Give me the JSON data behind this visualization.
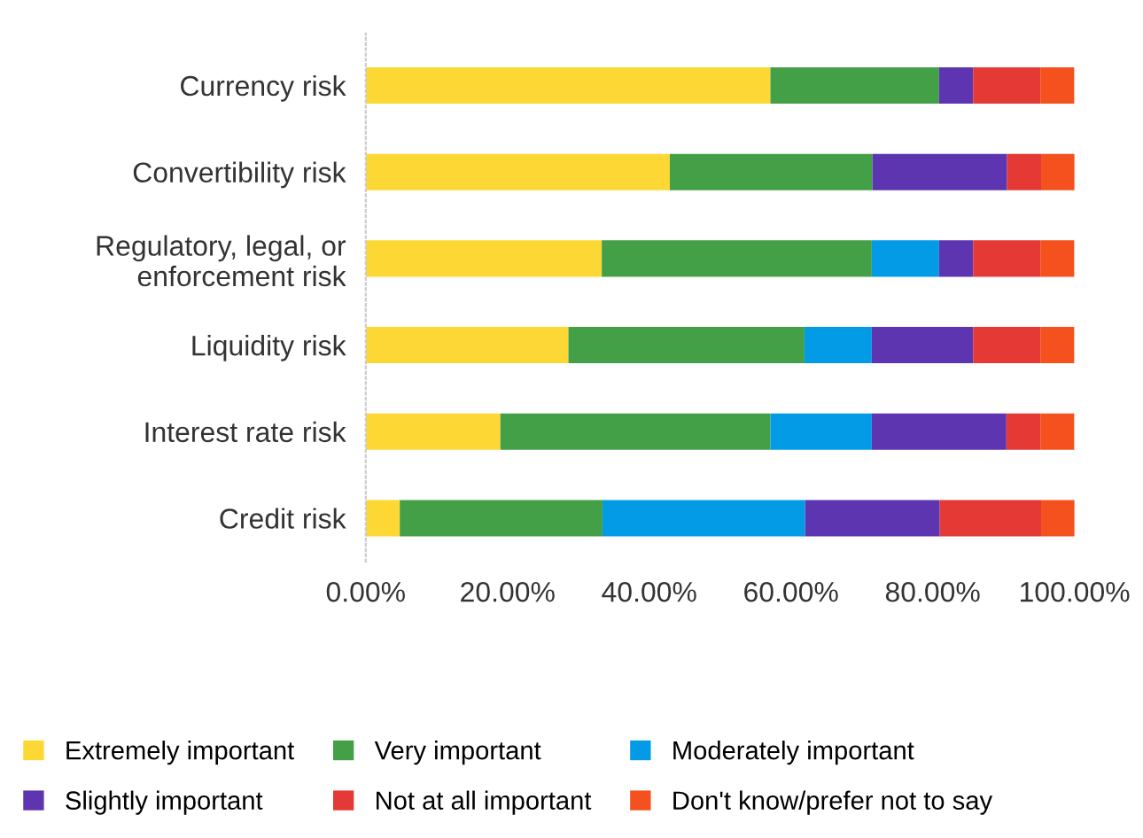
{
  "chart_data": {
    "type": "bar",
    "orientation": "horizontal",
    "stacked": true,
    "categories": [
      "Currency risk",
      "Convertibility risk",
      "Regulatory, legal, or\nenforcement risk",
      "Liquidity risk",
      "Interest rate risk",
      "Credit risk"
    ],
    "series": [
      {
        "name": "Extremely important",
        "color": "#fdd835",
        "values": [
          57.1,
          42.9,
          33.3,
          28.6,
          19.0,
          4.8
        ]
      },
      {
        "name": "Very important",
        "color": "#43a047",
        "values": [
          23.8,
          28.6,
          38.1,
          33.3,
          38.1,
          28.6
        ]
      },
      {
        "name": "Moderately important",
        "color": "#039be5",
        "values": [
          0,
          0,
          9.5,
          9.5,
          14.3,
          28.6
        ]
      },
      {
        "name": "Slightly important",
        "color": "#5e35b1",
        "values": [
          4.8,
          19.0,
          4.8,
          14.3,
          19.0,
          19.0
        ]
      },
      {
        "name": "Not at all important",
        "color": "#e53935",
        "values": [
          9.5,
          4.8,
          9.5,
          9.5,
          4.8,
          14.3
        ]
      },
      {
        "name": "Don't know/prefer not to say",
        "color": "#f4511e",
        "values": [
          4.8,
          4.8,
          4.8,
          4.8,
          4.8,
          4.8
        ]
      }
    ],
    "xlim": [
      0,
      100
    ],
    "xticks": [
      {
        "value": 0,
        "label": "0.00%"
      },
      {
        "value": 20,
        "label": "20.00%"
      },
      {
        "value": 40,
        "label": "40.00%"
      },
      {
        "value": 60,
        "label": "60.00%"
      },
      {
        "value": 80,
        "label": "80.00%"
      },
      {
        "value": 100,
        "label": "100.00%"
      }
    ],
    "grid": false,
    "legend": "bottom"
  }
}
